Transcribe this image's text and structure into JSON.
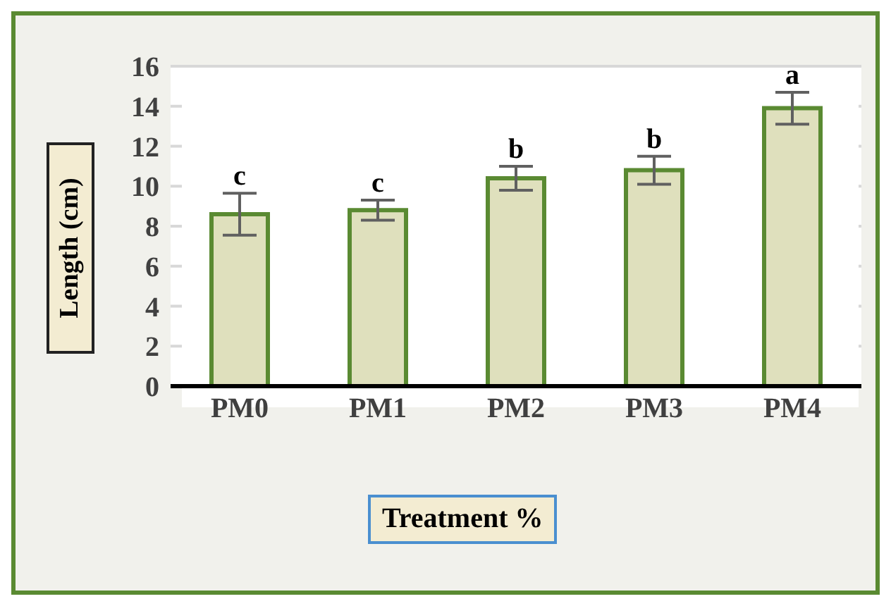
{
  "chart_data": {
    "type": "bar",
    "xlabel": "Treatment %",
    "ylabel": "Length (cm)",
    "categories": [
      "PM0",
      "PM1",
      "PM2",
      "PM3",
      "PM4"
    ],
    "values": [
      8.6,
      8.8,
      10.4,
      10.8,
      13.9
    ],
    "errors": [
      1.05,
      0.5,
      0.6,
      0.7,
      0.8
    ],
    "color": "#dfe0bd",
    "ylim": [
      0,
      16
    ],
    "yticks": [
      0,
      2,
      4,
      6,
      8,
      10,
      12,
      14,
      16
    ],
    "grid": "y",
    "annotations": [
      {
        "text": "c",
        "x": "PM0",
        "y": 9.65
      },
      {
        "text": "c",
        "x": "PM1",
        "y": 9.3
      },
      {
        "text": "b",
        "x": "PM2",
        "y": 11.0
      },
      {
        "text": "b",
        "x": "PM3",
        "y": 11.5
      },
      {
        "text": "a",
        "x": "PM4",
        "y": 14.7
      }
    ]
  }
}
